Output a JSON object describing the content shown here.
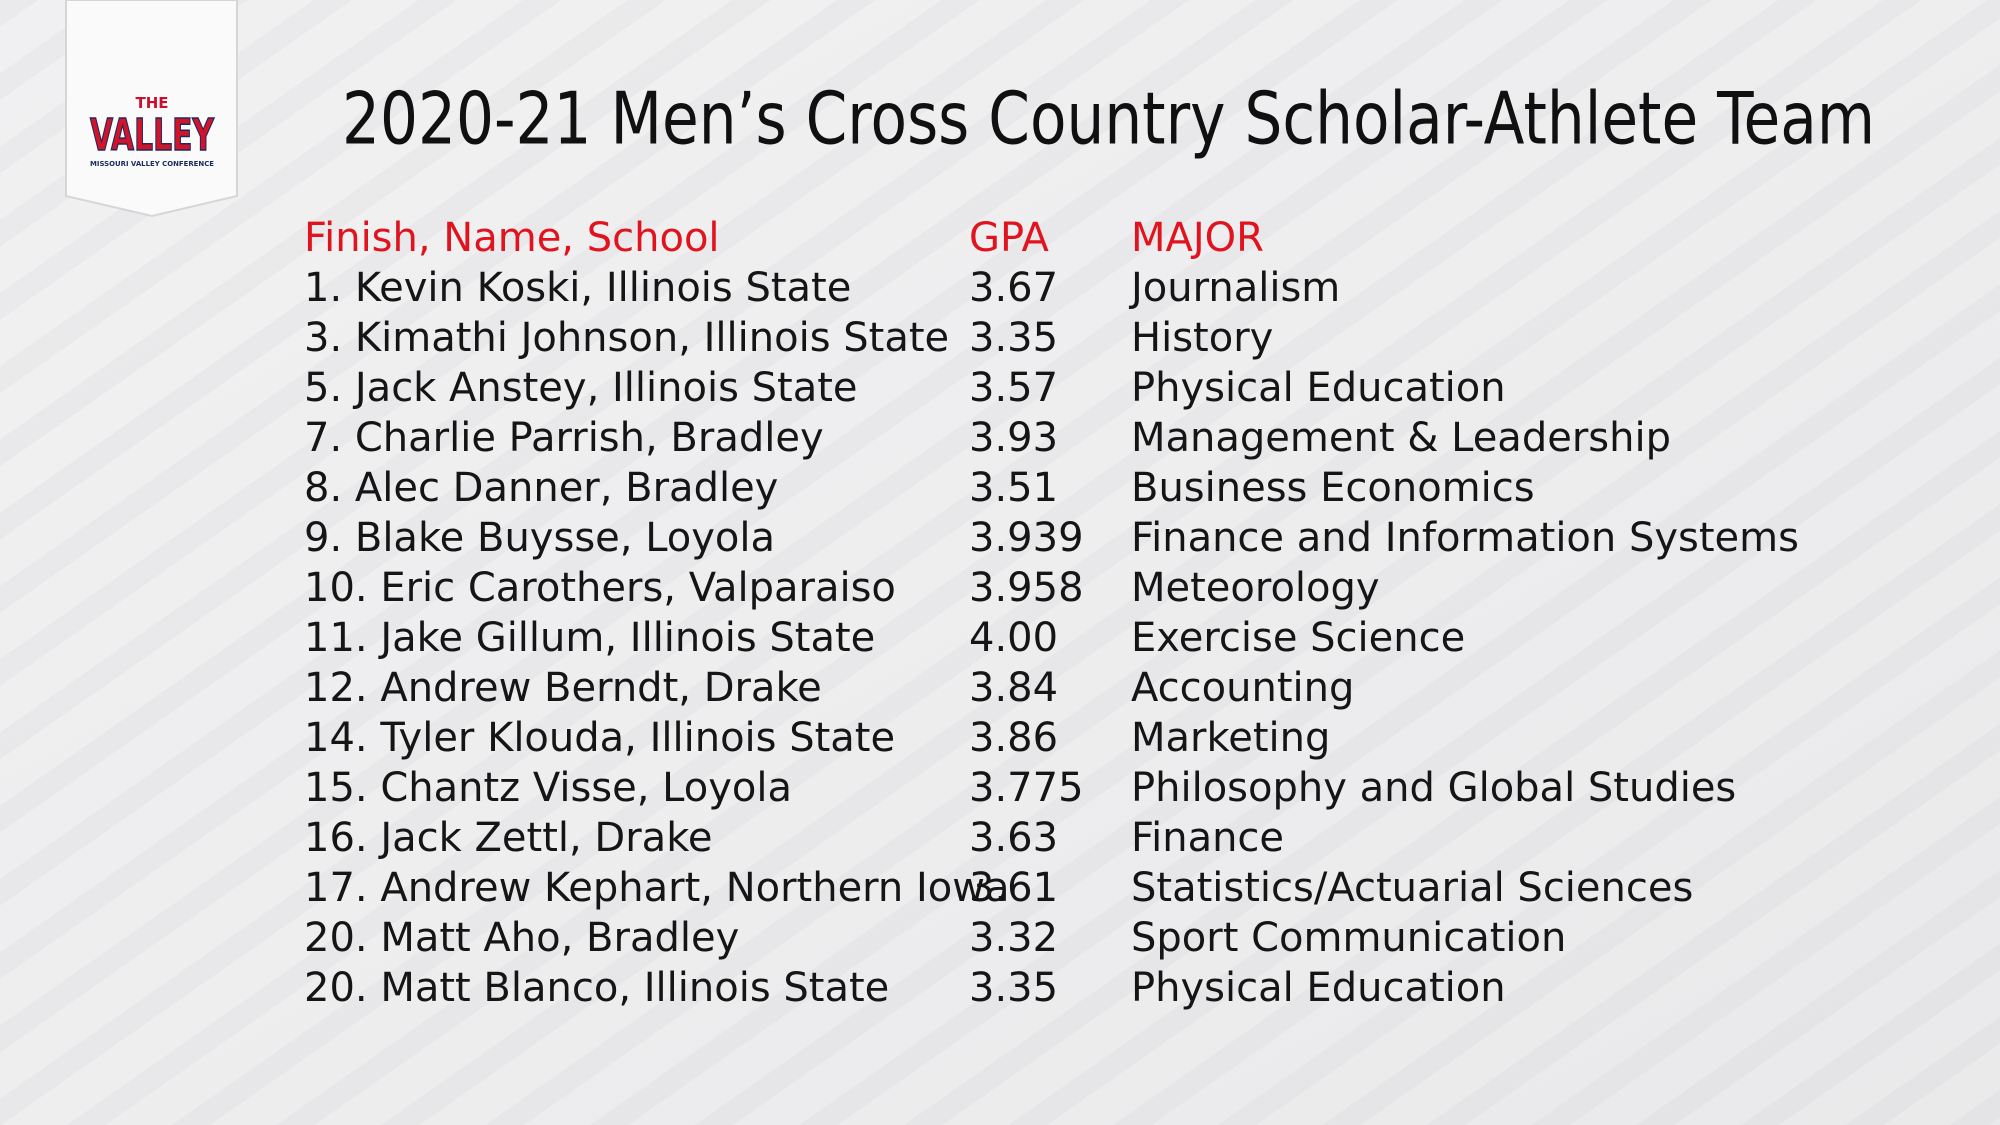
{
  "logo": {
    "top": "THE",
    "main": "VALLEY",
    "sub": "MISSOURI VALLEY CONFERENCE"
  },
  "title": "2020-21 Men’s Cross Country Scholar-Athlete Team",
  "table": {
    "header": [
      "Finish, Name, School",
      "GPA",
      "MAJOR"
    ],
    "rows": [
      [
        "1. Kevin Koski, Illinois State",
        "3.67",
        "Journalism"
      ],
      [
        "3. Kimathi Johnson, Illinois State",
        "3.35",
        "History"
      ],
      [
        "5. Jack Anstey, Illinois State",
        "3.57",
        "Physical Education"
      ],
      [
        "7. Charlie Parrish, Bradley",
        "3.93",
        "Management & Leadership"
      ],
      [
        "8. Alec Danner, Bradley",
        "3.51",
        "Business Economics"
      ],
      [
        "9. Blake Buysse, Loyola",
        "3.939",
        "Finance and Information Systems"
      ],
      [
        "10. Eric Carothers, Valparaiso",
        "3.958",
        "Meteorology"
      ],
      [
        "11. Jake Gillum, Illinois State",
        "4.00",
        "Exercise Science"
      ],
      [
        "12. Andrew Berndt, Drake",
        "3.84",
        "Accounting"
      ],
      [
        "14. Tyler Klouda, Illinois State",
        "3.86",
        "Marketing"
      ],
      [
        "15. Chantz Visse, Loyola",
        "3.775",
        "Philosophy and Global Studies"
      ],
      [
        "16. Jack Zettl, Drake",
        "3.63",
        "Finance"
      ],
      [
        "17. Andrew Kephart, Northern Iowa",
        "3.61",
        "Statistics/Actuarial Sciences"
      ],
      [
        "20. Matt Aho, Bradley",
        "3.32",
        "Sport Communication"
      ],
      [
        "20. Matt Blanco, Illinois State",
        "3.35",
        "Physical Education"
      ]
    ]
  }
}
